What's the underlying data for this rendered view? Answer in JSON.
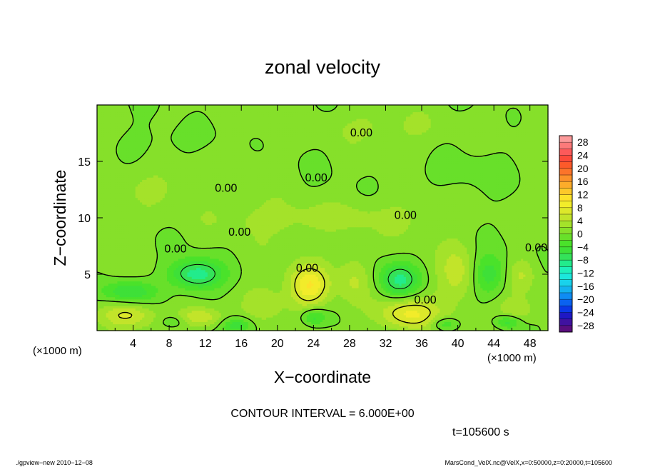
{
  "chart_data": {
    "type": "heatmap",
    "title": "zonal velocity",
    "xlabel": "X−coordinate",
    "ylabel": "Z−coordinate",
    "x_unit_left": "(×1000 m)",
    "x_unit_right": "(×1000 m)",
    "xlim": [
      0,
      50
    ],
    "ylim": [
      0,
      20
    ],
    "x_ticks": [
      4,
      8,
      12,
      16,
      20,
      24,
      28,
      32,
      36,
      40,
      44,
      48
    ],
    "y_ticks": [
      5,
      10,
      15
    ],
    "grid": false,
    "colorbar": {
      "placement": "right",
      "levels": [
        -30,
        -28,
        -26,
        -24,
        -22,
        -20,
        -18,
        -16,
        -14,
        -12,
        -10,
        -8,
        -6,
        -4,
        -2,
        0,
        2,
        4,
        6,
        8,
        10,
        12,
        14,
        16,
        18,
        20,
        22,
        24,
        26,
        28,
        30
      ],
      "tick_labels": [
        {
          "value": 28,
          "text": "28"
        },
        {
          "value": 24,
          "text": "24"
        },
        {
          "value": 20,
          "text": "20"
        },
        {
          "value": 16,
          "text": "16"
        },
        {
          "value": 12,
          "text": "12"
        },
        {
          "value": 8,
          "text": "8"
        },
        {
          "value": 4,
          "text": "4"
        },
        {
          "value": 0,
          "text": "0"
        },
        {
          "value": -4,
          "text": "−4"
        },
        {
          "value": -8,
          "text": "−8"
        },
        {
          "value": -12,
          "text": "−12"
        },
        {
          "value": -16,
          "text": "−16"
        },
        {
          "value": -20,
          "text": "−20"
        },
        {
          "value": -24,
          "text": "−24"
        },
        {
          "value": -28,
          "text": "−28"
        }
      ]
    },
    "contour_labels": [
      {
        "text": "0.00",
        "x": 29.3,
        "y": 17.6
      },
      {
        "text": "0.00",
        "x": 24.3,
        "y": 13.6
      },
      {
        "text": "0.00",
        "x": 14.3,
        "y": 12.7
      },
      {
        "text": "0.00",
        "x": 34.2,
        "y": 10.3
      },
      {
        "text": "0.00",
        "x": 15.8,
        "y": 8.8
      },
      {
        "text": "0.00",
        "x": 8.7,
        "y": 7.3
      },
      {
        "text": "0.00",
        "x": 48.7,
        "y": 7.4
      },
      {
        "text": "0.00",
        "x": 23.3,
        "y": 5.6
      },
      {
        "text": "0.00",
        "x": 36.4,
        "y": 2.8
      }
    ],
    "features": [
      {
        "x": 34.5,
        "y": 1.5,
        "v": 8,
        "sx": 3.2,
        "sy": 1.4
      },
      {
        "x": 23.5,
        "y": 4.0,
        "v": 9,
        "sx": 2.2,
        "sy": 1.8
      },
      {
        "x": 11.5,
        "y": 1.2,
        "v": 6,
        "sx": 2.4,
        "sy": 0.9
      },
      {
        "x": 3.5,
        "y": 1.4,
        "v": 5,
        "sx": 3.0,
        "sy": 1.0
      },
      {
        "x": 28.5,
        "y": 4.5,
        "v": 4,
        "sx": 1.8,
        "sy": 2.5
      },
      {
        "x": 40.0,
        "y": 5.0,
        "v": 4,
        "sx": 2.0,
        "sy": 2.5
      },
      {
        "x": 46.5,
        "y": 1.8,
        "v": 4,
        "sx": 2.0,
        "sy": 1.2
      },
      {
        "x": 18.5,
        "y": 2.5,
        "v": 3,
        "sx": 2.0,
        "sy": 1.5
      },
      {
        "x": 47.2,
        "y": 5.0,
        "v": 4,
        "sx": 1.6,
        "sy": 1.6
      },
      {
        "x": 11.0,
        "y": 5.0,
        "v": -10,
        "sx": 2.8,
        "sy": 1.3
      },
      {
        "x": 3.5,
        "y": 3.5,
        "v": -7,
        "sx": 2.8,
        "sy": 1.0
      },
      {
        "x": 33.5,
        "y": 4.5,
        "v": -9,
        "sx": 2.2,
        "sy": 1.5
      },
      {
        "x": 43.5,
        "y": 5.0,
        "v": -6,
        "sx": 1.8,
        "sy": 1.8
      },
      {
        "x": 15.5,
        "y": 0.5,
        "v": -6,
        "sx": 1.6,
        "sy": 0.7
      },
      {
        "x": 24.0,
        "y": 1.2,
        "v": -6,
        "sx": 1.4,
        "sy": 0.8
      },
      {
        "x": 38.5,
        "y": 0.6,
        "v": -5,
        "sx": 1.5,
        "sy": 0.6
      },
      {
        "x": 45.5,
        "y": 0.8,
        "v": -6,
        "sx": 1.4,
        "sy": 0.6
      },
      {
        "x": 8.5,
        "y": 0.8,
        "v": -3,
        "sx": 1.5,
        "sy": 0.6
      },
      {
        "x": 25.0,
        "y": 10.0,
        "v": 2.5,
        "sx": 12,
        "sy": 1.5
      },
      {
        "x": 8.0,
        "y": 13.0,
        "v": 2,
        "sx": 5,
        "sy": 2.0
      },
      {
        "x": 30.0,
        "y": 18.0,
        "v": 1.5,
        "sx": 10,
        "sy": 1.5
      },
      {
        "x": 40.0,
        "y": 14.0,
        "v": -1.5,
        "sx": 6,
        "sy": 1.5
      },
      {
        "x": 10.0,
        "y": 17.0,
        "v": -1.2,
        "sx": 6,
        "sy": 1.5
      }
    ],
    "contour_interval_text": "CONTOUR INTERVAL = 6.000E+00",
    "time_text": "t=105600 s"
  },
  "footer": {
    "left": "./gpview−new   2010−12−08",
    "right": "MarsCond_VelX.nc@VelX,x=0:50000,z=0:20000,t=105600"
  },
  "colors": {
    "frame": "#000000",
    "background": "#ffffff"
  }
}
